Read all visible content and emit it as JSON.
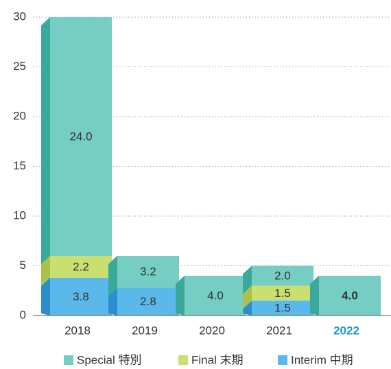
{
  "chart_data": {
    "type": "bar",
    "stacked": true,
    "categories": [
      "2018",
      "2019",
      "2020",
      "2021",
      "2022"
    ],
    "series": [
      {
        "name": "Interim 中期",
        "color": "#5bb8ea",
        "side_color": "#2a8fcc",
        "values": [
          3.8,
          2.8,
          null,
          1.5,
          null
        ],
        "value_labels": [
          "3.8",
          "2.8",
          null,
          "1.5",
          null
        ]
      },
      {
        "name": "Final 末期",
        "color": "#c9df6f",
        "side_color": "#a8c24a",
        "values": [
          2.2,
          null,
          null,
          1.5,
          null
        ],
        "value_labels": [
          "2.2",
          null,
          null,
          "1.5",
          null
        ]
      },
      {
        "name": "Special 特別",
        "color": "#76cdc4",
        "side_color": "#3aa89a",
        "values": [
          24,
          3.2,
          4,
          2,
          4
        ],
        "value_labels": [
          "24.0",
          "3.2",
          "4.0",
          "2.0",
          "4.0"
        ]
      }
    ],
    "ylim": [
      0,
      30
    ],
    "yticks": [
      0,
      5,
      10,
      15,
      20,
      25,
      30
    ],
    "grid": true,
    "legend": "bottom"
  }
}
